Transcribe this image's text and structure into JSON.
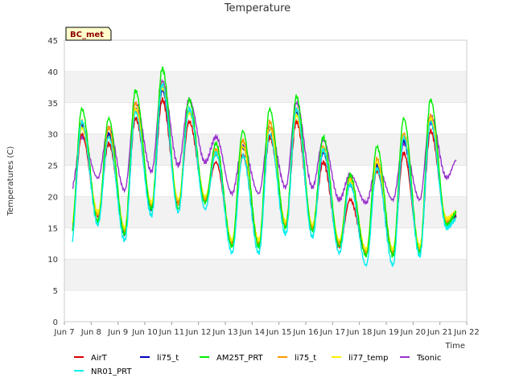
{
  "chart_data": {
    "type": "line",
    "title": "Temperature",
    "xlabel": "Time",
    "ylabel": "Temperatures (C)",
    "badge": "BC_met",
    "ylim": [
      0,
      45
    ],
    "yticks": [
      0,
      5,
      10,
      15,
      20,
      25,
      30,
      35,
      40,
      45
    ],
    "xlim": [
      "2024-06-07",
      "2024-06-22"
    ],
    "xticks": [
      "Jun 7",
      "Jun 8",
      "Jun 9",
      "Jun 10",
      "Jun 11",
      "Jun 12",
      "Jun 13",
      "Jun 14",
      "Jun 15",
      "Jun 16",
      "Jun 17",
      "Jun 18",
      "Jun 19",
      "Jun 20",
      "Jun 21",
      "Jun 22"
    ],
    "grid": "horizontal bands",
    "legend_position": "bottom",
    "daily_extremes_note": "values are approximate daily min/max per series",
    "days": [
      "Jun 7",
      "Jun 8",
      "Jun 9",
      "Jun 10",
      "Jun 11",
      "Jun 12",
      "Jun 13",
      "Jun 14",
      "Jun 15",
      "Jun 16",
      "Jun 17",
      "Jun 18",
      "Jun 19",
      "Jun 20",
      "Jun 21"
    ],
    "series": [
      {
        "name": "AirT",
        "color": "#dd0000",
        "daily_min": [
          14.5,
          17.0,
          14.5,
          18.5,
          19.0,
          19.5,
          12.5,
          12.5,
          15.5,
          15.0,
          12.0,
          11.0,
          11.0,
          11.5,
          16.0
        ],
        "daily_max": [
          30.0,
          28.5,
          32.5,
          35.5,
          32.0,
          25.5,
          26.5,
          29.5,
          32.0,
          25.5,
          19.5,
          24.0,
          27.0,
          30.5,
          17.0
        ]
      },
      {
        "name": "li75_t",
        "color": "#0000bb",
        "daily_min": [
          14.0,
          17.0,
          14.0,
          18.0,
          19.0,
          19.5,
          12.5,
          12.5,
          15.5,
          15.0,
          12.5,
          11.0,
          11.0,
          11.5,
          16.0
        ],
        "daily_max": [
          31.5,
          30.0,
          34.0,
          37.0,
          34.0,
          27.0,
          28.0,
          31.0,
          33.5,
          27.0,
          22.0,
          25.0,
          29.0,
          32.0,
          17.0
        ]
      },
      {
        "name": "AM25T_PRT",
        "color": "#00ee00",
        "daily_min": [
          13.5,
          16.0,
          14.0,
          18.0,
          18.0,
          19.0,
          12.0,
          12.0,
          15.0,
          14.5,
          12.0,
          10.5,
          10.5,
          11.0,
          15.5
        ],
        "daily_max": [
          34.0,
          32.5,
          37.0,
          40.5,
          35.5,
          28.5,
          30.5,
          34.0,
          36.0,
          29.5,
          23.5,
          28.0,
          32.5,
          35.5,
          17.5
        ]
      },
      {
        "name": "li75_t",
        "color": "#ff9900",
        "daily_min": [
          14.0,
          17.0,
          14.5,
          18.5,
          19.0,
          19.5,
          12.5,
          12.5,
          15.5,
          15.0,
          12.5,
          11.0,
          11.0,
          11.5,
          16.0
        ],
        "daily_max": [
          32.0,
          31.0,
          35.0,
          38.0,
          34.0,
          27.5,
          29.0,
          32.0,
          34.0,
          28.0,
          23.0,
          26.0,
          30.0,
          33.0,
          17.5
        ]
      },
      {
        "name": "li77_temp",
        "color": "#ffee00",
        "daily_min": [
          15.0,
          17.5,
          15.0,
          19.0,
          19.5,
          20.0,
          13.0,
          13.0,
          16.0,
          15.5,
          13.0,
          11.5,
          11.5,
          12.0,
          16.5
        ],
        "daily_max": [
          31.0,
          29.5,
          34.0,
          37.5,
          33.5,
          27.0,
          28.0,
          31.0,
          33.0,
          27.5,
          22.5,
          25.5,
          29.5,
          32.5,
          17.5
        ]
      },
      {
        "name": "Tsonic",
        "color": "#9933cc",
        "daily_min": [
          21.0,
          23.0,
          21.0,
          24.0,
          25.0,
          25.5,
          20.5,
          20.5,
          21.5,
          21.5,
          19.5,
          19.0,
          19.5,
          19.5,
          23.0
        ],
        "daily_max": [
          29.5,
          31.0,
          35.0,
          38.5,
          35.5,
          29.5,
          28.0,
          31.0,
          35.0,
          29.0,
          23.5,
          25.0,
          28.5,
          33.0,
          26.0
        ]
      },
      {
        "name": "NR01_PRT",
        "color": "#00eeee",
        "daily_min": [
          12.0,
          15.5,
          13.0,
          17.0,
          17.5,
          18.0,
          11.0,
          11.0,
          14.0,
          13.5,
          11.0,
          9.0,
          9.0,
          10.5,
          15.0
        ],
        "daily_max": [
          32.0,
          29.5,
          33.5,
          38.0,
          34.0,
          27.0,
          26.5,
          30.0,
          34.0,
          27.5,
          22.0,
          24.5,
          29.5,
          32.0,
          16.5
        ]
      }
    ],
    "legend_order": [
      "AirT",
      "li75_t",
      "AM25T_PRT",
      "li75_t",
      "li77_temp",
      "Tsonic",
      "NR01_PRT"
    ]
  }
}
